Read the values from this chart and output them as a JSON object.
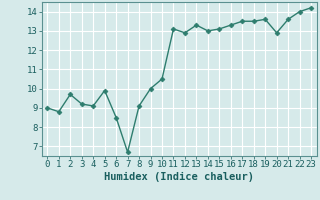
{
  "x": [
    0,
    1,
    2,
    3,
    4,
    5,
    6,
    7,
    8,
    9,
    10,
    11,
    12,
    13,
    14,
    15,
    16,
    17,
    18,
    19,
    20,
    21,
    22,
    23
  ],
  "y": [
    9.0,
    8.8,
    9.7,
    9.2,
    9.1,
    9.9,
    8.5,
    6.7,
    9.1,
    10.0,
    10.5,
    13.1,
    12.9,
    13.3,
    13.0,
    13.1,
    13.3,
    13.5,
    13.5,
    13.6,
    12.9,
    13.6,
    14.0,
    14.2
  ],
  "line_color": "#2e7d6e",
  "marker": "D",
  "marker_size": 2.5,
  "line_width": 1.0,
  "xlabel": "Humidex (Indice chaleur)",
  "xlim": [
    -0.5,
    23.5
  ],
  "ylim": [
    6.5,
    14.5
  ],
  "yticks": [
    7,
    8,
    9,
    10,
    11,
    12,
    13,
    14
  ],
  "xticks": [
    0,
    1,
    2,
    3,
    4,
    5,
    6,
    7,
    8,
    9,
    10,
    11,
    12,
    13,
    14,
    15,
    16,
    17,
    18,
    19,
    20,
    21,
    22,
    23
  ],
  "bg_color": "#d6eaea",
  "grid_color": "#ffffff",
  "axes_color": "#5a9090",
  "label_color": "#1a5f5f",
  "xlabel_fontsize": 7.5,
  "tick_fontsize": 6.5
}
